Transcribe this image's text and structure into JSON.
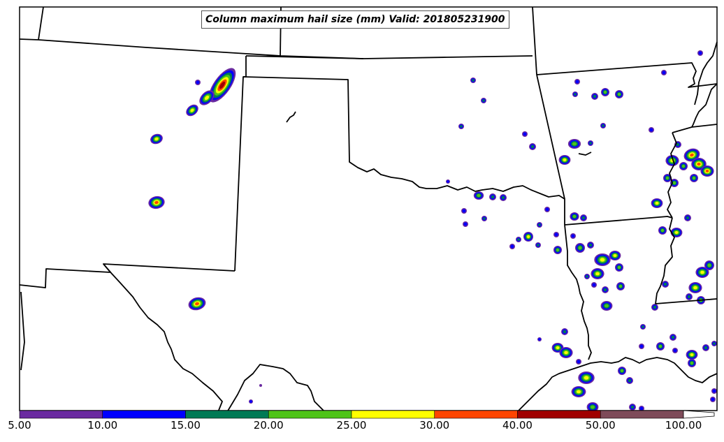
{
  "title": "Column maximum hail size (mm) Valid: 201805231900",
  "colorbar": {
    "bins": [
      {
        "from": "5.00",
        "to": "10.00",
        "color": "#6a2aa0"
      },
      {
        "from": "10.00",
        "to": "15.00",
        "color": "#0000ff"
      },
      {
        "from": "15.00",
        "to": "20.00",
        "color": "#007a55"
      },
      {
        "from": "20.00",
        "to": "25.00",
        "color": "#4ec417"
      },
      {
        "from": "25.00",
        "to": "30.00",
        "color": "#ffff00"
      },
      {
        "from": "30.00",
        "to": "40.00",
        "color": "#ff4500"
      },
      {
        "from": "40.00",
        "to": "50.00",
        "color": "#a00000"
      },
      {
        "from": "50.00",
        "to": "100.00",
        "color": "#7e4b59"
      }
    ],
    "labels": [
      "5.00",
      "10.00",
      "15.00",
      "20.00",
      "25.00",
      "30.00",
      "40.00",
      "50.00",
      "100.00"
    ]
  },
  "storm_level_colors": [
    "#6a2aa0",
    "#0000ff",
    "#007a55",
    "#4ec417",
    "#ffff00",
    "#ff4500",
    "#a00000"
  ]
}
